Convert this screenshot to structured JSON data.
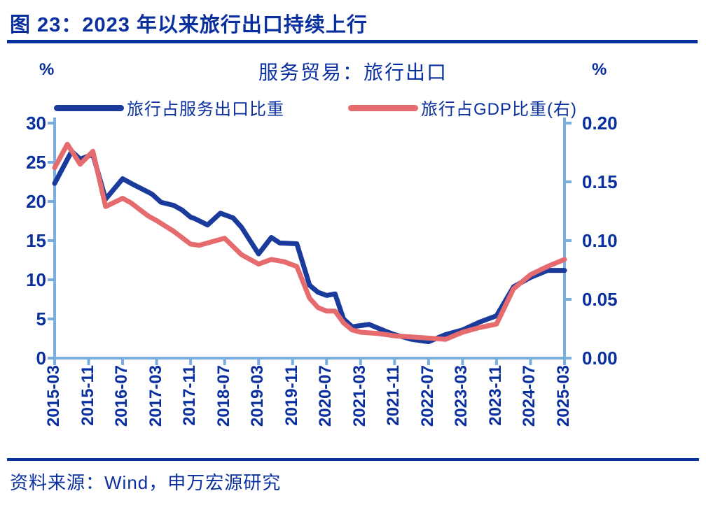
{
  "figure": {
    "title": "图 23：2023 年以来旅行出口持续上行",
    "source": "资料来源：Wind，申万宏源研究"
  },
  "chart_data": {
    "type": "line",
    "title": "服务贸易：旅行出口",
    "legend_position": "top",
    "grid": false,
    "colors": {
      "navy_text": "#0a2f9e",
      "series_blue": "#1a3a9c",
      "series_red": "#e56b6f",
      "axis_light_blue": "#7aaedf"
    },
    "left_axis": {
      "unit": "%",
      "min": 0,
      "max": 30,
      "tick_step": 5,
      "ticks": [
        "30",
        "25",
        "20",
        "15",
        "10",
        "5",
        "0"
      ]
    },
    "right_axis": {
      "unit": "%",
      "min": 0,
      "max": 0.2,
      "tick_step": 0.05,
      "ticks": [
        "0.20",
        "0.15",
        "0.10",
        "0.05",
        "0.00"
      ]
    },
    "x_axis": {
      "start_label": "2015-03",
      "end_label": "2025-03",
      "months_total": 120,
      "label_every_months": 8,
      "tick_labels": [
        "2015-03",
        "2015-11",
        "2016-07",
        "2017-03",
        "2017-11",
        "2018-07",
        "2019-03",
        "2019-11",
        "2020-07",
        "2021-03",
        "2021-11",
        "2022-07",
        "2023-03",
        "2023-11",
        "2024-07",
        "2025-03"
      ]
    },
    "series": [
      {
        "name": "旅行占服务出口比重",
        "axis": "left",
        "color": "#1a3a9c",
        "points_month_value": [
          [
            0,
            22.3
          ],
          [
            4,
            26.4
          ],
          [
            6,
            25.4
          ],
          [
            9,
            26.0
          ],
          [
            12,
            20.3
          ],
          [
            16,
            22.9
          ],
          [
            18,
            22.3
          ],
          [
            22,
            21.2
          ],
          [
            23,
            20.9
          ],
          [
            25,
            19.9
          ],
          [
            28,
            19.5
          ],
          [
            30,
            18.9
          ],
          [
            32,
            18.0
          ],
          [
            33,
            17.8
          ],
          [
            36,
            17.0
          ],
          [
            39,
            18.5
          ],
          [
            42,
            17.9
          ],
          [
            44,
            16.7
          ],
          [
            48,
            13.3
          ],
          [
            51,
            15.4
          ],
          [
            53,
            14.7
          ],
          [
            57,
            14.6
          ],
          [
            60,
            9.3
          ],
          [
            62,
            8.4
          ],
          [
            64,
            8.0
          ],
          [
            66,
            8.2
          ],
          [
            68,
            5.0
          ],
          [
            70,
            4.0
          ],
          [
            74,
            4.3
          ],
          [
            78,
            3.4
          ],
          [
            80,
            3.0
          ],
          [
            84,
            2.4
          ],
          [
            88,
            2.1
          ],
          [
            92,
            3.0
          ],
          [
            96,
            3.6
          ],
          [
            100,
            4.6
          ],
          [
            104,
            5.4
          ],
          [
            108,
            9.1
          ],
          [
            112,
            10.3
          ],
          [
            116,
            11.2
          ],
          [
            120,
            11.2
          ]
        ]
      },
      {
        "name": "旅行占GDP比重(右)",
        "axis": "right",
        "color": "#e56b6f",
        "points_month_value": [
          [
            0,
            0.162
          ],
          [
            3,
            0.182
          ],
          [
            6,
            0.165
          ],
          [
            9,
            0.176
          ],
          [
            12,
            0.129
          ],
          [
            16,
            0.136
          ],
          [
            18,
            0.132
          ],
          [
            22,
            0.121
          ],
          [
            24,
            0.117
          ],
          [
            28,
            0.108
          ],
          [
            32,
            0.097
          ],
          [
            34,
            0.096
          ],
          [
            36,
            0.098
          ],
          [
            40,
            0.102
          ],
          [
            44,
            0.088
          ],
          [
            48,
            0.08
          ],
          [
            51,
            0.084
          ],
          [
            54,
            0.082
          ],
          [
            57,
            0.078
          ],
          [
            60,
            0.051
          ],
          [
            62,
            0.043
          ],
          [
            64,
            0.04
          ],
          [
            66,
            0.04
          ],
          [
            68,
            0.03
          ],
          [
            70,
            0.024
          ],
          [
            72,
            0.022
          ],
          [
            76,
            0.021
          ],
          [
            80,
            0.019
          ],
          [
            84,
            0.018
          ],
          [
            88,
            0.017
          ],
          [
            92,
            0.016
          ],
          [
            96,
            0.022
          ],
          [
            100,
            0.026
          ],
          [
            104,
            0.029
          ],
          [
            108,
            0.059
          ],
          [
            112,
            0.071
          ],
          [
            116,
            0.078
          ],
          [
            120,
            0.084
          ]
        ]
      }
    ]
  }
}
